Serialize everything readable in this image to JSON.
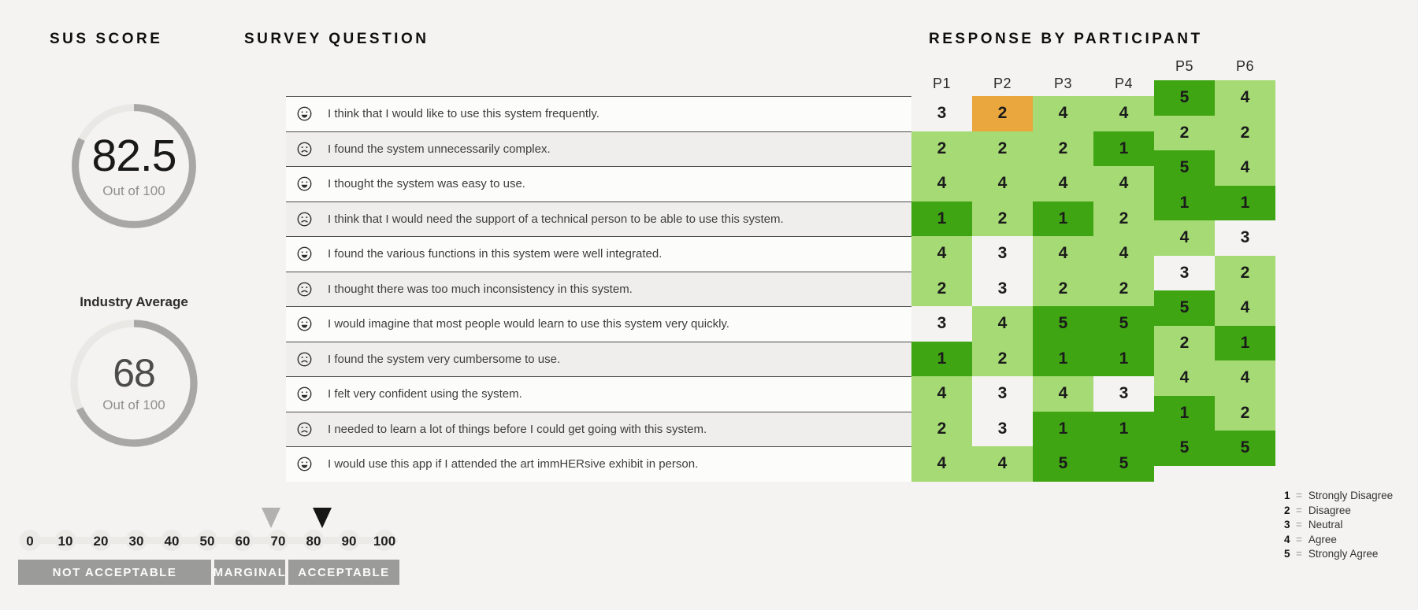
{
  "headings": {
    "sus_score": "SUS SCORE",
    "survey_question": "SURVEY QUESTION",
    "response_by_participant": "RESPONSE BY PARTICIPANT"
  },
  "gauges": {
    "sus": {
      "value": "82.5",
      "caption": "Out of 100",
      "percent": 82.5
    },
    "industry": {
      "label": "Industry Average",
      "value": "68",
      "caption": "Out of 100",
      "percent": 68
    }
  },
  "survey": {
    "participants": [
      "P1",
      "P2",
      "P3",
      "P4",
      "P5",
      "P6"
    ],
    "questions": [
      {
        "sentiment": "positive",
        "text": "I think that I would like to use this system frequently."
      },
      {
        "sentiment": "negative",
        "text": "I found the system unnecessarily complex."
      },
      {
        "sentiment": "positive",
        "text": "I thought the system was easy to use."
      },
      {
        "sentiment": "negative",
        "text": "I think that I would need the support of a technical person to be able to use this system."
      },
      {
        "sentiment": "positive",
        "text": "I found the various functions in this system were well integrated."
      },
      {
        "sentiment": "negative",
        "text": "I thought there was too much inconsistency in this system."
      },
      {
        "sentiment": "positive",
        "text": "I would imagine that most people would learn to use this system very quickly."
      },
      {
        "sentiment": "negative",
        "text": "I found the system very cumbersome to use."
      },
      {
        "sentiment": "positive",
        "text": "I felt very confident using the system."
      },
      {
        "sentiment": "negative",
        "text": "I needed to learn a lot of things before I could get going with this system."
      },
      {
        "sentiment": "positive",
        "text": "I would use this app if I attended the art immHERsive exhibit in person."
      }
    ],
    "responses": [
      [
        3,
        2,
        4,
        4,
        5,
        4
      ],
      [
        2,
        2,
        2,
        1,
        2,
        2
      ],
      [
        4,
        4,
        4,
        4,
        5,
        4
      ],
      [
        1,
        2,
        1,
        2,
        1,
        1
      ],
      [
        4,
        3,
        4,
        4,
        4,
        3
      ],
      [
        2,
        3,
        2,
        2,
        3,
        2
      ],
      [
        3,
        4,
        5,
        5,
        5,
        4
      ],
      [
        1,
        2,
        1,
        1,
        2,
        1
      ],
      [
        4,
        3,
        4,
        3,
        4,
        4
      ],
      [
        2,
        3,
        1,
        1,
        1,
        2
      ],
      [
        4,
        4,
        5,
        5,
        5,
        5
      ]
    ]
  },
  "colors": {
    "best": "#3fa513",
    "good": "#a5da74",
    "poor": "#e9a73e",
    "neutral": "transparent",
    "gauge_ring": "#a8a7a5",
    "gauge_gap": "#eae8e5",
    "marker_gray": "#b2b1af",
    "marker_black": "#161616"
  },
  "scale": {
    "ticks": [
      "0",
      "10",
      "20",
      "30",
      "40",
      "50",
      "60",
      "70",
      "80",
      "90",
      "100"
    ],
    "markers": [
      {
        "name": "industry-average-marker",
        "value": 68,
        "color_key": "marker_gray"
      },
      {
        "name": "sus-score-marker",
        "value": 82.5,
        "color_key": "marker_black"
      }
    ],
    "bands": [
      "NOT ACCEPTABLE",
      "MARGINAL",
      "ACCEPTABLE"
    ]
  },
  "legend": [
    {
      "value": "1",
      "label": "Strongly Disagree"
    },
    {
      "value": "2",
      "label": "Disagree"
    },
    {
      "value": "3",
      "label": "Neutral"
    },
    {
      "value": "4",
      "label": "Agree"
    },
    {
      "value": "5",
      "label": "Strongly Agree"
    }
  ],
  "chart_data": [
    {
      "type": "gauge",
      "title": "SUS SCORE",
      "value": 82.5,
      "max": 100,
      "caption": "Out of 100"
    },
    {
      "type": "gauge",
      "title": "Industry Average",
      "value": 68,
      "max": 100,
      "caption": "Out of 100"
    },
    {
      "type": "heatmap",
      "title": "RESPONSE BY PARTICIPANT",
      "columns": [
        "P1",
        "P2",
        "P3",
        "P4",
        "P5",
        "P6"
      ],
      "rows": [
        "I think that I would like to use this system frequently.",
        "I found the system unnecessarily complex.",
        "I thought the system was easy to use.",
        "I think that I would need the support of a technical person to be able to use this system.",
        "I found the various functions in this system were well integrated.",
        "I thought there was too much inconsistency in this system.",
        "I would imagine that most people would learn to use this system very quickly.",
        "I found the system very cumbersome to use.",
        "I felt very confident using the system.",
        "I needed to learn a lot of things before I could get going with this system.",
        "I would use this app if I attended the art immHERsive exhibit in person."
      ],
      "values": [
        [
          3,
          2,
          4,
          4,
          5,
          4
        ],
        [
          2,
          2,
          2,
          1,
          2,
          2
        ],
        [
          4,
          4,
          4,
          4,
          5,
          4
        ],
        [
          1,
          2,
          1,
          2,
          1,
          1
        ],
        [
          4,
          3,
          4,
          4,
          4,
          3
        ],
        [
          2,
          3,
          2,
          2,
          3,
          2
        ],
        [
          3,
          4,
          5,
          5,
          5,
          4
        ],
        [
          1,
          2,
          1,
          1,
          2,
          1
        ],
        [
          4,
          3,
          4,
          3,
          4,
          4
        ],
        [
          2,
          3,
          1,
          1,
          1,
          2
        ],
        [
          4,
          4,
          5,
          5,
          5,
          5
        ]
      ],
      "value_legend": {
        "1": "Strongly Disagree",
        "2": "Disagree",
        "3": "Neutral",
        "4": "Agree",
        "5": "Strongly Agree"
      },
      "color_rule": "favorable answers green (dark=best), neutral uncolored, unfavorable orange"
    },
    {
      "type": "scale",
      "ticks": [
        0,
        10,
        20,
        30,
        40,
        50,
        60,
        70,
        80,
        90,
        100
      ],
      "bands": [
        "NOT ACCEPTABLE",
        "MARGINAL",
        "ACCEPTABLE"
      ],
      "markers": [
        {
          "label": "industry average",
          "value": 68
        },
        {
          "label": "sus score",
          "value": 82.5
        }
      ]
    }
  ]
}
